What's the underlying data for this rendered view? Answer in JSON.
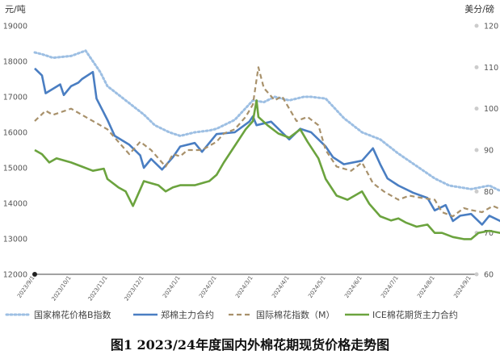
{
  "caption": "图1 2023/24年度国内外棉花期现货价格走势图",
  "chart_data": {
    "type": "line",
    "y_left": {
      "unit": "元/吨",
      "min": 12000,
      "max": 19000,
      "ticks": [
        12000,
        13000,
        14000,
        15000,
        16000,
        17000,
        18000,
        19000
      ]
    },
    "y_right": {
      "unit": "美分/磅",
      "min": 60,
      "max": 120,
      "ticks": [
        60,
        70,
        80,
        90,
        100,
        110,
        120
      ]
    },
    "x_ticks": [
      "2023/9/1",
      "2023/10/1",
      "2023/11/1",
      "2023/12/1",
      "2024/1/1",
      "2024/2/1",
      "2024/3/1",
      "2024/4/1",
      "2024/5/1",
      "2024/6/1",
      "2024/7/1",
      "2024/8/1",
      "2024/9/1"
    ],
    "series": [
      {
        "name": "国家棉花价格B指数",
        "axis": "left",
        "color": "#9dbfe3",
        "style": "dotted",
        "points": [
          [
            0,
            18250
          ],
          [
            0.2,
            18200
          ],
          [
            0.5,
            18100
          ],
          [
            1,
            18150
          ],
          [
            1.4,
            18300
          ],
          [
            1.8,
            17700
          ],
          [
            2,
            17300
          ],
          [
            2.5,
            16900
          ],
          [
            3,
            16500
          ],
          [
            3.3,
            16200
          ],
          [
            3.7,
            16000
          ],
          [
            4,
            15900
          ],
          [
            4.4,
            16000
          ],
          [
            4.8,
            16050
          ],
          [
            5,
            16100
          ],
          [
            5.5,
            16350
          ],
          [
            6,
            16900
          ],
          [
            6.3,
            16850
          ],
          [
            6.6,
            17000
          ],
          [
            7,
            16900
          ],
          [
            7.4,
            17000
          ],
          [
            7.6,
            17000
          ],
          [
            8,
            16950
          ],
          [
            8.5,
            16400
          ],
          [
            9,
            16000
          ],
          [
            9.5,
            15800
          ],
          [
            10,
            15400
          ],
          [
            10.5,
            15050
          ],
          [
            11,
            14700
          ],
          [
            11.4,
            14500
          ],
          [
            12,
            14400
          ],
          [
            12.5,
            14500
          ],
          [
            13,
            14250
          ],
          [
            13.15,
            14250
          ]
        ]
      },
      {
        "name": "郑棉主力合约",
        "axis": "left",
        "color": "#4a7ec2",
        "style": "solid",
        "points": [
          [
            0,
            17800
          ],
          [
            0.2,
            17600
          ],
          [
            0.3,
            17100
          ],
          [
            0.7,
            17350
          ],
          [
            0.8,
            17050
          ],
          [
            1,
            17300
          ],
          [
            1.2,
            17400
          ],
          [
            1.3,
            17500
          ],
          [
            1.6,
            17700
          ],
          [
            1.7,
            16950
          ],
          [
            2,
            16350
          ],
          [
            2.2,
            15900
          ],
          [
            2.6,
            15650
          ],
          [
            2.9,
            15350
          ],
          [
            3,
            15000
          ],
          [
            3.2,
            15250
          ],
          [
            3.5,
            14950
          ],
          [
            3.8,
            15300
          ],
          [
            4,
            15600
          ],
          [
            4.4,
            15700
          ],
          [
            4.6,
            15450
          ],
          [
            5,
            15950
          ],
          [
            5.5,
            16000
          ],
          [
            5.9,
            16300
          ],
          [
            6,
            16450
          ],
          [
            6.1,
            16200
          ],
          [
            6.5,
            16300
          ],
          [
            6.8,
            16000
          ],
          [
            7,
            15800
          ],
          [
            7.3,
            16100
          ],
          [
            7.6,
            16000
          ],
          [
            8,
            15600
          ],
          [
            8.2,
            15300
          ],
          [
            8.5,
            15100
          ],
          [
            9,
            15200
          ],
          [
            9.3,
            15550
          ],
          [
            9.5,
            15100
          ],
          [
            9.7,
            14700
          ],
          [
            10,
            14500
          ],
          [
            10.4,
            14300
          ],
          [
            10.8,
            14150
          ],
          [
            11,
            13800
          ],
          [
            11.3,
            13950
          ],
          [
            11.5,
            13500
          ],
          [
            11.7,
            13650
          ],
          [
            12,
            13700
          ],
          [
            12.3,
            13400
          ],
          [
            12.5,
            13650
          ],
          [
            12.8,
            13500
          ],
          [
            13,
            13300
          ],
          [
            13.15,
            13500
          ]
        ]
      },
      {
        "name": "国际棉花指数（M）",
        "axis": "right",
        "color": "#a8916b",
        "style": "dashed",
        "points": [
          [
            0,
            97
          ],
          [
            0.3,
            99.5
          ],
          [
            0.5,
            98.5
          ],
          [
            1,
            100
          ],
          [
            1.3,
            98.5
          ],
          [
            1.6,
            97
          ],
          [
            1.8,
            96
          ],
          [
            2,
            95
          ],
          [
            2.3,
            92
          ],
          [
            2.6,
            89
          ],
          [
            2.9,
            92
          ],
          [
            3.2,
            90
          ],
          [
            3.4,
            88
          ],
          [
            3.6,
            86
          ],
          [
            3.8,
            89
          ],
          [
            4,
            88.5
          ],
          [
            4.2,
            90
          ],
          [
            4.6,
            90
          ],
          [
            5,
            92
          ],
          [
            5.2,
            94
          ],
          [
            5.5,
            95
          ],
          [
            5.8,
            98
          ],
          [
            6,
            101
          ],
          [
            6.1,
            107
          ],
          [
            6.15,
            110
          ],
          [
            6.3,
            105
          ],
          [
            6.6,
            102
          ],
          [
            6.8,
            103
          ],
          [
            7,
            100
          ],
          [
            7.2,
            97
          ],
          [
            7.5,
            98
          ],
          [
            7.8,
            96
          ],
          [
            8,
            90
          ],
          [
            8.3,
            86
          ],
          [
            8.7,
            85
          ],
          [
            9,
            87
          ],
          [
            9.3,
            82
          ],
          [
            9.6,
            80
          ],
          [
            10,
            78
          ],
          [
            10.3,
            79
          ],
          [
            10.6,
            78.5
          ],
          [
            11,
            78
          ],
          [
            11.2,
            75
          ],
          [
            11.5,
            74
          ],
          [
            11.8,
            76
          ],
          [
            12,
            75.5
          ],
          [
            12.3,
            75
          ],
          [
            12.6,
            76.5
          ],
          [
            13,
            75
          ],
          [
            13.15,
            76
          ]
        ]
      },
      {
        "name": "ICE棉花期货主力合约",
        "axis": "right",
        "color": "#6ba33e",
        "style": "solid",
        "points": [
          [
            0,
            90
          ],
          [
            0.2,
            89
          ],
          [
            0.4,
            87
          ],
          [
            0.6,
            88
          ],
          [
            1,
            87
          ],
          [
            1.3,
            86
          ],
          [
            1.6,
            85
          ],
          [
            1.9,
            85.5
          ],
          [
            2,
            83
          ],
          [
            2.3,
            81
          ],
          [
            2.5,
            80
          ],
          [
            2.7,
            76.5
          ],
          [
            2.9,
            80.5
          ],
          [
            3,
            82.5
          ],
          [
            3.2,
            82
          ],
          [
            3.4,
            81.5
          ],
          [
            3.6,
            80
          ],
          [
            3.8,
            81
          ],
          [
            4,
            81.5
          ],
          [
            4.4,
            81.5
          ],
          [
            4.8,
            82.5
          ],
          [
            5,
            84
          ],
          [
            5.2,
            87
          ],
          [
            5.5,
            91
          ],
          [
            5.8,
            95
          ],
          [
            6,
            97
          ],
          [
            6.1,
            102
          ],
          [
            6.15,
            98
          ],
          [
            6.4,
            96
          ],
          [
            6.7,
            94
          ],
          [
            7,
            93
          ],
          [
            7.3,
            95
          ],
          [
            7.5,
            92
          ],
          [
            7.8,
            88
          ],
          [
            8,
            83
          ],
          [
            8.3,
            79
          ],
          [
            8.6,
            78
          ],
          [
            9,
            80
          ],
          [
            9.2,
            77
          ],
          [
            9.5,
            74
          ],
          [
            9.8,
            73
          ],
          [
            10,
            73.5
          ],
          [
            10.2,
            72.5
          ],
          [
            10.5,
            71.5
          ],
          [
            10.8,
            72
          ],
          [
            11,
            70
          ],
          [
            11.2,
            70
          ],
          [
            11.5,
            69
          ],
          [
            11.8,
            68.5
          ],
          [
            12,
            68.5
          ],
          [
            12.2,
            70
          ],
          [
            12.5,
            70.5
          ],
          [
            12.8,
            70
          ],
          [
            13,
            69
          ],
          [
            13.15,
            70
          ]
        ]
      }
    ],
    "legend_position": "bottom",
    "grid": false
  }
}
